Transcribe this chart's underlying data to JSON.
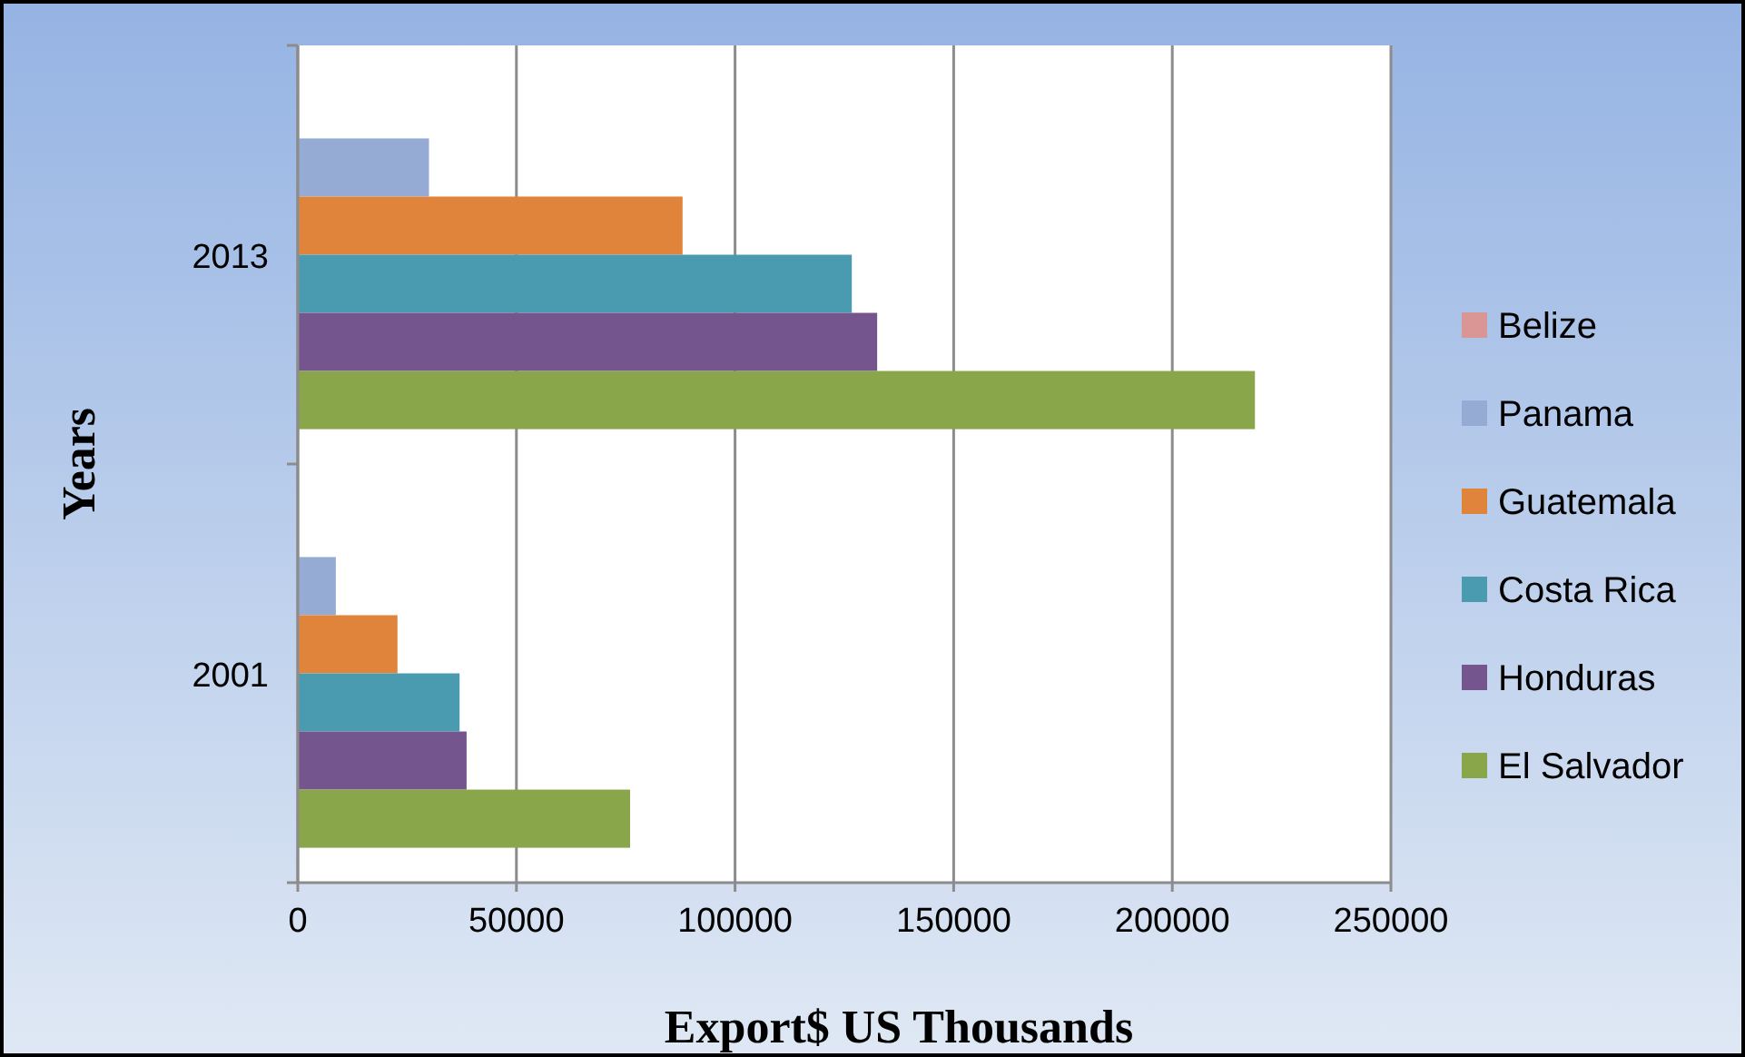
{
  "chart_data": {
    "type": "bar",
    "orientation": "horizontal",
    "xlabel": "Export$ US Thousands",
    "ylabel": "Years",
    "categories": [
      "2013",
      "2001"
    ],
    "series": [
      {
        "name": "Belize",
        "color": "#d99694",
        "values": [
          0,
          0
        ]
      },
      {
        "name": "Panama",
        "color": "#95abd4",
        "values": [
          30000,
          8700
        ]
      },
      {
        "name": "Guatemala",
        "color": "#e0843c",
        "values": [
          88000,
          22800
        ]
      },
      {
        "name": "Costa Rica",
        "color": "#4a9bb0",
        "values": [
          126700,
          37000
        ]
      },
      {
        "name": "Honduras",
        "color": "#74558e",
        "values": [
          132500,
          38600
        ]
      },
      {
        "name": "El Salvador",
        "color": "#8aa64b",
        "values": [
          218900,
          76000
        ]
      }
    ],
    "xlim": [
      0,
      250000
    ],
    "xticks": [
      0,
      50000,
      100000,
      150000,
      200000,
      250000
    ],
    "grid": "x",
    "legend": "right"
  }
}
